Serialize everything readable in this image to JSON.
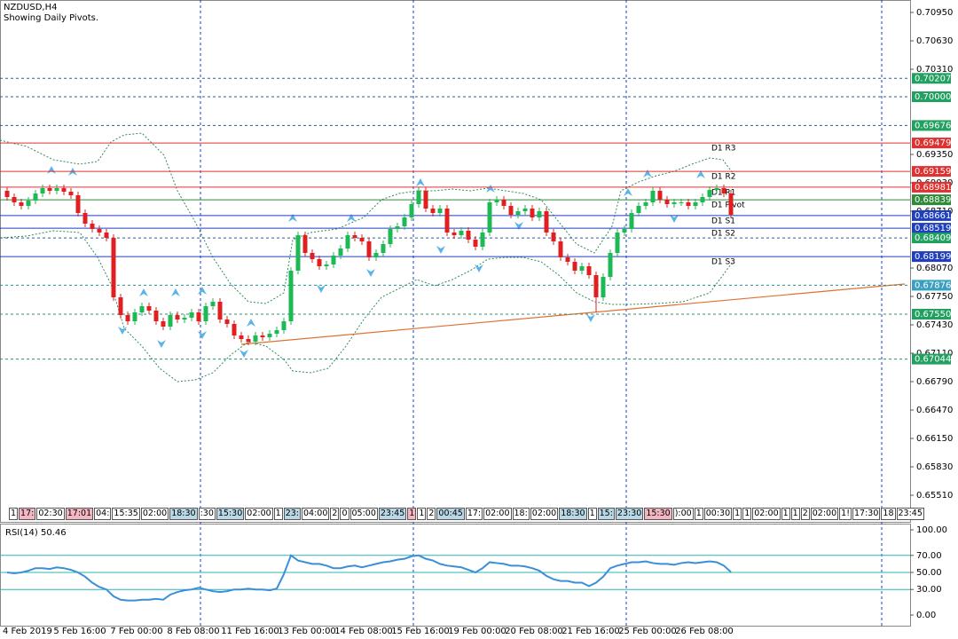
{
  "chart_data": [
    {
      "type": "candlestick",
      "title": "NZDUSD,H4",
      "subtitle": "Showing Daily Pivots.",
      "categories": [
        "4 Feb 2019",
        null,
        null,
        null,
        null,
        null,
        null,
        null,
        null,
        null,
        "5 Feb 16:00",
        null,
        null,
        null,
        null,
        null,
        null,
        null,
        "7 Feb 00:00",
        null,
        null,
        null,
        null,
        null,
        null,
        null,
        "8 Feb 08:00",
        null,
        null,
        null,
        null,
        null,
        null,
        null,
        "11 Feb 16:00",
        null,
        null,
        null,
        null,
        null,
        null,
        null,
        "13 Feb 00:00",
        null,
        null,
        null,
        null,
        null,
        null,
        null,
        "14 Feb 08:00",
        null,
        null,
        null,
        null,
        null,
        null,
        null,
        "15 Feb 16:00",
        null,
        null,
        null,
        null,
        null,
        null,
        null,
        "19 Feb 00:00",
        null,
        null,
        null,
        null,
        null,
        null,
        null,
        "20 Feb 08:00",
        null,
        null,
        null,
        null,
        null,
        null,
        null,
        "21 Feb 16:00",
        null,
        null,
        null,
        null,
        null,
        null,
        null,
        "25 Feb 00:00",
        null,
        null,
        null,
        null,
        null,
        null,
        null,
        "26 Feb 08:00",
        null,
        null,
        null,
        null
      ],
      "open": [
        0.6894,
        0.6887,
        0.6881,
        0.6877,
        0.6883,
        0.6891,
        0.6897,
        0.6894,
        0.6897,
        0.6893,
        0.6889,
        0.6869,
        0.6857,
        0.6851,
        0.6847,
        0.6841,
        0.6774,
        0.6754,
        0.6747,
        0.6757,
        0.6764,
        0.6759,
        0.6747,
        0.6741,
        0.6754,
        0.6749,
        0.6751,
        0.6757,
        0.6747,
        0.6764,
        0.6769,
        0.6749,
        0.6744,
        0.6731,
        0.6727,
        0.6724,
        0.6731,
        0.6729,
        0.6733,
        0.6737,
        0.6747,
        0.6804,
        0.6844,
        0.6824,
        0.6817,
        0.6809,
        0.6811,
        0.6821,
        0.6829,
        0.6844,
        0.6841,
        0.6837,
        0.6819,
        0.6824,
        0.6834,
        0.6851,
        0.6854,
        0.6864,
        0.6879,
        0.6894,
        0.6874,
        0.6869,
        0.6874,
        0.6847,
        0.6844,
        0.6849,
        0.6839,
        0.6831,
        0.6847,
        0.6881,
        0.6884,
        0.6877,
        0.6867,
        0.6871,
        0.6874,
        0.6864,
        0.6871,
        0.6847,
        0.6837,
        0.6819,
        0.6814,
        0.6804,
        0.6809,
        0.6799,
        0.6774,
        0.6797,
        0.6824,
        0.6847,
        0.6851,
        0.6869,
        0.6877,
        0.6881,
        0.6894,
        0.6884,
        0.6879,
        0.6881,
        0.6881,
        0.6877,
        0.6881,
        0.6887,
        0.6895,
        0.6897,
        0.6891
      ],
      "high": [
        0.6898,
        0.6891,
        0.6885,
        0.6887,
        0.6895,
        0.6901,
        0.6901,
        0.6901,
        0.6901,
        0.6897,
        0.6893,
        0.6873,
        0.6861,
        0.6855,
        0.6851,
        0.6845,
        0.6778,
        0.6758,
        0.6761,
        0.6768,
        0.6768,
        0.6763,
        0.6751,
        0.6758,
        0.6758,
        0.6755,
        0.6761,
        0.6761,
        0.6768,
        0.6773,
        0.6773,
        0.6753,
        0.6748,
        0.6735,
        0.6731,
        0.6735,
        0.6735,
        0.6737,
        0.6741,
        0.6751,
        0.6808,
        0.6848,
        0.6848,
        0.6828,
        0.6821,
        0.6815,
        0.6825,
        0.6833,
        0.6848,
        0.6848,
        0.6845,
        0.6841,
        0.6828,
        0.6838,
        0.6855,
        0.6858,
        0.6868,
        0.6883,
        0.6898,
        0.6898,
        0.6878,
        0.6878,
        0.6878,
        0.6851,
        0.6853,
        0.6853,
        0.6843,
        0.6851,
        0.6885,
        0.6888,
        0.6888,
        0.6881,
        0.6875,
        0.6878,
        0.6878,
        0.6875,
        0.6875,
        0.6851,
        0.6841,
        0.6823,
        0.6818,
        0.6813,
        0.6813,
        0.6803,
        0.6801,
        0.6828,
        0.6851,
        0.6855,
        0.6873,
        0.6881,
        0.6885,
        0.6898,
        0.6898,
        0.6888,
        0.6885,
        0.6885,
        0.6885,
        0.6885,
        0.6891,
        0.6899,
        0.6901,
        0.6901,
        0.6895
      ],
      "low": [
        0.6883,
        0.6877,
        0.6873,
        0.6873,
        0.6879,
        0.6887,
        0.689,
        0.689,
        0.6889,
        0.6885,
        0.6865,
        0.6853,
        0.6847,
        0.6843,
        0.6837,
        0.677,
        0.675,
        0.6743,
        0.6743,
        0.6753,
        0.6755,
        0.6743,
        0.6737,
        0.6737,
        0.6745,
        0.6745,
        0.6747,
        0.6743,
        0.6743,
        0.676,
        0.6745,
        0.674,
        0.6727,
        0.6723,
        0.672,
        0.672,
        0.6725,
        0.6725,
        0.6729,
        0.6733,
        0.6743,
        0.68,
        0.682,
        0.6813,
        0.6805,
        0.6805,
        0.6807,
        0.6817,
        0.6825,
        0.6837,
        0.6833,
        0.6815,
        0.6815,
        0.682,
        0.683,
        0.6847,
        0.685,
        0.686,
        0.6875,
        0.687,
        0.6865,
        0.6865,
        0.6843,
        0.684,
        0.684,
        0.6835,
        0.6827,
        0.6827,
        0.6843,
        0.6877,
        0.6873,
        0.6863,
        0.6863,
        0.6867,
        0.686,
        0.686,
        0.6843,
        0.6833,
        0.6815,
        0.681,
        0.68,
        0.68,
        0.6795,
        0.6757,
        0.677,
        0.6793,
        0.682,
        0.6843,
        0.6847,
        0.6865,
        0.6873,
        0.6877,
        0.688,
        0.6875,
        0.6875,
        0.6877,
        0.6873,
        0.6873,
        0.6877,
        0.6883,
        0.6891,
        0.6887,
        0.6863
      ],
      "close": [
        0.6887,
        0.6881,
        0.6877,
        0.6883,
        0.6891,
        0.6897,
        0.6894,
        0.6897,
        0.6893,
        0.6889,
        0.6869,
        0.6857,
        0.6851,
        0.6847,
        0.6841,
        0.6774,
        0.6754,
        0.6747,
        0.6757,
        0.6764,
        0.6759,
        0.6747,
        0.6741,
        0.6754,
        0.6749,
        0.6751,
        0.6757,
        0.6747,
        0.6764,
        0.6769,
        0.6749,
        0.6744,
        0.6731,
        0.6727,
        0.6724,
        0.6731,
        0.6729,
        0.6733,
        0.6737,
        0.6747,
        0.6804,
        0.6844,
        0.6824,
        0.6817,
        0.6809,
        0.6811,
        0.6821,
        0.6829,
        0.6844,
        0.6841,
        0.6837,
        0.6819,
        0.6824,
        0.6834,
        0.6851,
        0.6854,
        0.6864,
        0.6879,
        0.6894,
        0.6874,
        0.6869,
        0.6874,
        0.6847,
        0.6844,
        0.6849,
        0.6839,
        0.6831,
        0.6847,
        0.6881,
        0.6884,
        0.6877,
        0.6867,
        0.6871,
        0.6874,
        0.6864,
        0.6871,
        0.6847,
        0.6837,
        0.6819,
        0.6814,
        0.6804,
        0.6809,
        0.6799,
        0.6774,
        0.6797,
        0.6824,
        0.6847,
        0.6851,
        0.6869,
        0.6877,
        0.6881,
        0.6894,
        0.6884,
        0.6879,
        0.6881,
        0.6881,
        0.6877,
        0.6881,
        0.6887,
        0.6895,
        0.6897,
        0.6891,
        0.6867
      ],
      "up_color": "#1db954",
      "down_color": "#e02020",
      "ylim": [
        0.6521,
        0.7109
      ],
      "yticks": [
        {
          "value": 0.7095,
          "label": "0.70950"
        },
        {
          "value": 0.7063,
          "label": "0.70630"
        },
        {
          "value": 0.7031,
          "label": "0.70310"
        },
        {
          "value": 0.6935,
          "label": "0.69350"
        },
        {
          "value": 0.6903,
          "label": "0.69030"
        },
        {
          "value": 0.6871,
          "label": "0.68710"
        },
        {
          "value": 0.6807,
          "label": "0.68070"
        },
        {
          "value": 0.6775,
          "label": "0.67750"
        },
        {
          "value": 0.6743,
          "label": "0.67430"
        },
        {
          "value": 0.6711,
          "label": "0.67110"
        },
        {
          "value": 0.6679,
          "label": "0.66790"
        },
        {
          "value": 0.6647,
          "label": "0.66470"
        },
        {
          "value": 0.6615,
          "label": "0.66150"
        },
        {
          "value": 0.6583,
          "label": "0.65830"
        },
        {
          "value": 0.6551,
          "label": "0.65510"
        }
      ],
      "levels": [
        {
          "value": 0.70207,
          "label": "0.70207",
          "color": "#2f5f9f",
          "box": "#21a060",
          "style": "dashed"
        },
        {
          "value": 0.7,
          "label": "0.70000",
          "color": "#2f5f9f",
          "box": "#21a060",
          "style": "dashed"
        },
        {
          "value": 0.69676,
          "label": "0.69676",
          "color": "#2f5f9f",
          "box": "#21a060",
          "style": "dashed"
        },
        {
          "value": 0.69479,
          "label": "0.69479",
          "color": "#e03030",
          "box": "#e03030",
          "style": "solid",
          "name": "D1 R3"
        },
        {
          "value": 0.69159,
          "label": "0.69159",
          "color": "#e03030",
          "box": "#e03030",
          "style": "solid",
          "name": "D1 R2"
        },
        {
          "value": 0.68981,
          "label": "0.68981",
          "color": "#e03030",
          "box": "#e03030",
          "style": "solid",
          "name": "D1 R1"
        },
        {
          "value": 0.68839,
          "label": "0.68839",
          "color": "#2e8b3a",
          "box": "#2e8b3a",
          "style": "solid",
          "name": "D1 Pivot"
        },
        {
          "value": 0.68661,
          "label": "0.68661",
          "color": "#1f3fbf",
          "box": "#1f3fbf",
          "style": "solid",
          "name": "D1 S1"
        },
        {
          "value": 0.68519,
          "label": "0.68519",
          "color": "#1f3fbf",
          "box": "#1f3fbf",
          "style": "solid",
          "name": "D1 S2"
        },
        {
          "value": 0.68409,
          "label": "0.68409",
          "color": "#2f5f9f",
          "box": "#21a060",
          "style": "dashed"
        },
        {
          "value": 0.68199,
          "label": "0.68199",
          "color": "#1f3fbf",
          "box": "#1f3fbf",
          "style": "solid",
          "name": "D1 S3"
        },
        {
          "value": 0.67876,
          "label": "0.67876",
          "color": "#2f8f8f",
          "box": "#3aa0c0",
          "style": "dashed"
        },
        {
          "value": 0.6755,
          "label": "0.67550",
          "color": "#2f8f6f",
          "box": "#21a060",
          "style": "dashed"
        },
        {
          "value": 0.67044,
          "label": "0.67044",
          "color": "#2f8f6f",
          "box": "#21a060",
          "style": "dashed"
        }
      ],
      "time_markers": [
        {
          "label": "1",
          "color": "#ffffff"
        },
        {
          "label": "17:",
          "color": "#f4b6c2"
        },
        {
          "label": "02:30",
          "color": "#ffffff"
        },
        {
          "label": "17:01",
          "color": "#f4b6c2"
        },
        {
          "label": "04:",
          "color": "#ffffff"
        },
        {
          "label": "15:35",
          "color": "#ffffff"
        },
        {
          "label": "02:00",
          "color": "#ffffff"
        },
        {
          "label": "18:30",
          "color": "#b8d8e8"
        },
        {
          "label": ":30",
          "color": "#ffffff"
        },
        {
          "label": "15:30",
          "color": "#b8d8e8"
        },
        {
          "label": "02:00",
          "color": "#ffffff"
        },
        {
          "label": "1",
          "color": "#ffffff"
        },
        {
          "label": "23:",
          "color": "#b8d8e8"
        },
        {
          "label": "04:00",
          "color": "#ffffff"
        },
        {
          "label": "2",
          "color": "#ffffff"
        },
        {
          "label": "0",
          "color": "#ffffff"
        },
        {
          "label": "05:00",
          "color": "#ffffff"
        },
        {
          "label": "23:45",
          "color": "#b8d8e8"
        },
        {
          "label": "1",
          "color": "#f4b6c2"
        },
        {
          "label": "1",
          "color": "#ffffff"
        },
        {
          "label": "2",
          "color": "#ffffff"
        },
        {
          "label": "00:45",
          "color": "#b8d8e8"
        },
        {
          "label": "17:",
          "color": "#ffffff"
        },
        {
          "label": "02:00",
          "color": "#ffffff"
        },
        {
          "label": "18:",
          "color": "#ffffff"
        },
        {
          "label": "02:00",
          "color": "#ffffff"
        },
        {
          "label": "18:30",
          "color": "#b8d8e8"
        },
        {
          "label": "1",
          "color": "#ffffff"
        },
        {
          "label": "15:",
          "color": "#b8d8e8"
        },
        {
          "label": "23:30",
          "color": "#b8d8e8"
        },
        {
          "label": "15:30",
          "color": "#f4b6c2"
        },
        {
          "label": "):00",
          "color": "#ffffff"
        },
        {
          "label": "1",
          "color": "#ffffff"
        },
        {
          "label": "00:30",
          "color": "#ffffff"
        },
        {
          "label": "1",
          "color": "#ffffff"
        },
        {
          "label": "1",
          "color": "#ffffff"
        },
        {
          "label": "02:00",
          "color": "#ffffff"
        },
        {
          "label": "1",
          "color": "#ffffff"
        },
        {
          "label": "1",
          "color": "#ffffff"
        },
        {
          "label": "2",
          "color": "#ffffff"
        },
        {
          "label": "02:00",
          "color": "#ffffff"
        },
        {
          "label": "1!",
          "color": "#ffffff"
        },
        {
          "label": "17:30",
          "color": "#ffffff"
        },
        {
          "label": "18",
          "color": "#ffffff"
        },
        {
          "label": "23:45",
          "color": "#ffffff"
        }
      ]
    },
    {
      "type": "line",
      "title": "RSI(14) 50.46",
      "color": "#3a8fd8",
      "values": [
        50,
        49,
        50,
        52,
        55,
        55,
        54,
        56,
        55,
        53,
        50,
        45,
        38,
        33,
        30,
        22,
        18,
        17,
        17,
        18,
        18,
        19,
        18,
        24,
        27,
        29,
        30,
        32,
        30,
        28,
        27,
        28,
        30,
        30,
        31,
        30,
        30,
        29,
        31,
        48,
        70,
        64,
        62,
        60,
        60,
        58,
        55,
        55,
        57,
        58,
        56,
        58,
        60,
        62,
        63,
        65,
        66,
        69,
        70,
        66,
        64,
        60,
        58,
        57,
        56,
        53,
        50,
        55,
        62,
        61,
        60,
        58,
        58,
        57,
        55,
        52,
        46,
        42,
        40,
        40,
        38,
        38,
        34,
        38,
        45,
        55,
        58,
        60,
        62,
        62,
        63,
        61,
        60,
        60,
        59,
        61,
        62,
        61,
        62,
        63,
        62,
        58,
        50.46
      ],
      "ylim": [
        -12.5,
        107.29
      ],
      "yticks": [
        {
          "value": 100,
          "label": "100.00"
        },
        {
          "value": 70,
          "label": "70.00"
        },
        {
          "value": 50,
          "label": "50.00"
        },
        {
          "value": 30,
          "label": "30.00"
        },
        {
          "value": 0,
          "label": "0.00"
        }
      ],
      "levels": [
        70,
        50,
        30
      ]
    }
  ]
}
